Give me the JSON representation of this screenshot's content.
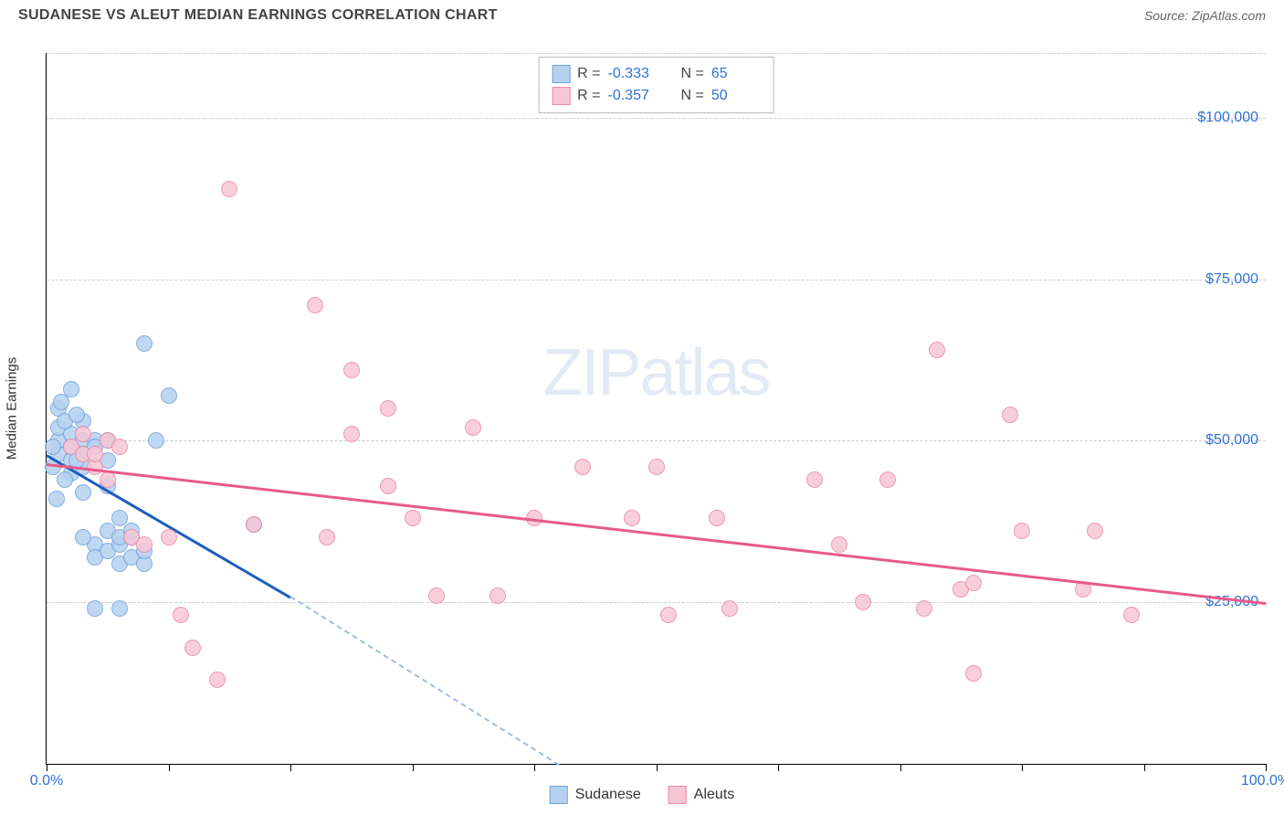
{
  "title": "SUDANESE VS ALEUT MEDIAN EARNINGS CORRELATION CHART",
  "source": "Source: ZipAtlas.com",
  "watermark_zip": "ZIP",
  "watermark_atlas": "atlas",
  "ylabel": "Median Earnings",
  "chart": {
    "type": "scatter",
    "xlim": [
      0,
      100
    ],
    "ylim": [
      0,
      110000
    ],
    "x_tick_positions": [
      0,
      10,
      20,
      30,
      40,
      50,
      60,
      70,
      80,
      90,
      100
    ],
    "x_tick_labels": {
      "0": "0.0%",
      "100": "100.0%"
    },
    "y_grid_positions": [
      25000,
      50000,
      75000,
      100000,
      110000
    ],
    "y_tick_labels": {
      "25000": "$25,000",
      "50000": "$50,000",
      "75000": "$75,000",
      "100000": "$100,000"
    },
    "background_color": "#ffffff",
    "grid_color": "#cccccc",
    "axis_color": "#000000",
    "tick_label_color": "#2f72d6",
    "marker_radius": 9,
    "marker_opacity": 0.85
  },
  "series": [
    {
      "name": "Sudanese",
      "fill": "#b6d1f0",
      "stroke": "#6fa3de",
      "trend_color": "#1b5fbf",
      "trend_dash_color": "#9ebde0",
      "R": "-0.333",
      "N": "65",
      "trend": {
        "x1": 0,
        "y1": 48000,
        "x2": 20,
        "y2": 26000,
        "x2_dash": 42,
        "y2_dash": 0
      },
      "points": [
        [
          1,
          48000
        ],
        [
          1,
          50000
        ],
        [
          1,
          52000
        ],
        [
          1,
          55000
        ],
        [
          2,
          49000
        ],
        [
          2,
          47000
        ],
        [
          2,
          51000
        ],
        [
          2,
          58000
        ],
        [
          2,
          45000
        ],
        [
          3,
          50000
        ],
        [
          3,
          48000
        ],
        [
          3,
          46000
        ],
        [
          3,
          53000
        ],
        [
          3,
          42000
        ],
        [
          4,
          50000
        ],
        [
          4,
          49000
        ],
        [
          4,
          34000
        ],
        [
          4,
          32000
        ],
        [
          5,
          47000
        ],
        [
          5,
          50000
        ],
        [
          5,
          36000
        ],
        [
          5,
          43000
        ],
        [
          5,
          33000
        ],
        [
          6,
          31000
        ],
        [
          6,
          34000
        ],
        [
          6,
          35000
        ],
        [
          6,
          38000
        ],
        [
          6,
          24000
        ],
        [
          7,
          32000
        ],
        [
          7,
          35000
        ],
        [
          7,
          36000
        ],
        [
          8,
          65000
        ],
        [
          8,
          31000
        ],
        [
          8,
          33000
        ],
        [
          3,
          35000
        ],
        [
          4,
          24000
        ],
        [
          10,
          57000
        ],
        [
          9,
          50000
        ],
        [
          17,
          37000
        ],
        [
          0.5,
          46000
        ],
        [
          0.5,
          49000
        ],
        [
          1.5,
          44000
        ],
        [
          1.5,
          53000
        ],
        [
          2.5,
          47000
        ],
        [
          2.5,
          54000
        ],
        [
          0.8,
          41000
        ],
        [
          1.2,
          56000
        ]
      ]
    },
    {
      "name": "Aleuts",
      "fill": "#f7c6d5",
      "stroke": "#ea8aa8",
      "trend_color": "#e85a8a",
      "R": "-0.357",
      "N": "50",
      "trend": {
        "x1": 0,
        "y1": 46500,
        "x2": 100,
        "y2": 25000
      },
      "points": [
        [
          2,
          49000
        ],
        [
          3,
          48000
        ],
        [
          4,
          46000
        ],
        [
          5,
          50000
        ],
        [
          5,
          44000
        ],
        [
          6,
          49000
        ],
        [
          7,
          35000
        ],
        [
          8,
          34000
        ],
        [
          10,
          35000
        ],
        [
          11,
          23000
        ],
        [
          12,
          18000
        ],
        [
          14,
          13000
        ],
        [
          15,
          89000
        ],
        [
          17,
          37000
        ],
        [
          22,
          71000
        ],
        [
          23,
          35000
        ],
        [
          25,
          61000
        ],
        [
          25,
          51000
        ],
        [
          28,
          43000
        ],
        [
          28,
          55000
        ],
        [
          30,
          38000
        ],
        [
          32,
          26000
        ],
        [
          35,
          52000
        ],
        [
          37,
          26000
        ],
        [
          40,
          38000
        ],
        [
          44,
          46000
        ],
        [
          48,
          38000
        ],
        [
          50,
          46000
        ],
        [
          51,
          23000
        ],
        [
          55,
          38000
        ],
        [
          56,
          24000
        ],
        [
          63,
          44000
        ],
        [
          65,
          34000
        ],
        [
          67,
          25000
        ],
        [
          69,
          44000
        ],
        [
          72,
          24000
        ],
        [
          73,
          64000
        ],
        [
          75,
          27000
        ],
        [
          76,
          28000
        ],
        [
          76,
          14000
        ],
        [
          79,
          54000
        ],
        [
          80,
          36000
        ],
        [
          85,
          27000
        ],
        [
          86,
          36000
        ],
        [
          89,
          23000
        ],
        [
          3,
          51000
        ],
        [
          4,
          48000
        ]
      ]
    }
  ],
  "legend": {
    "series1_label": "Sudanese",
    "series2_label": "Aleuts"
  },
  "stats_labels": {
    "R": "R =",
    "N": "N ="
  }
}
